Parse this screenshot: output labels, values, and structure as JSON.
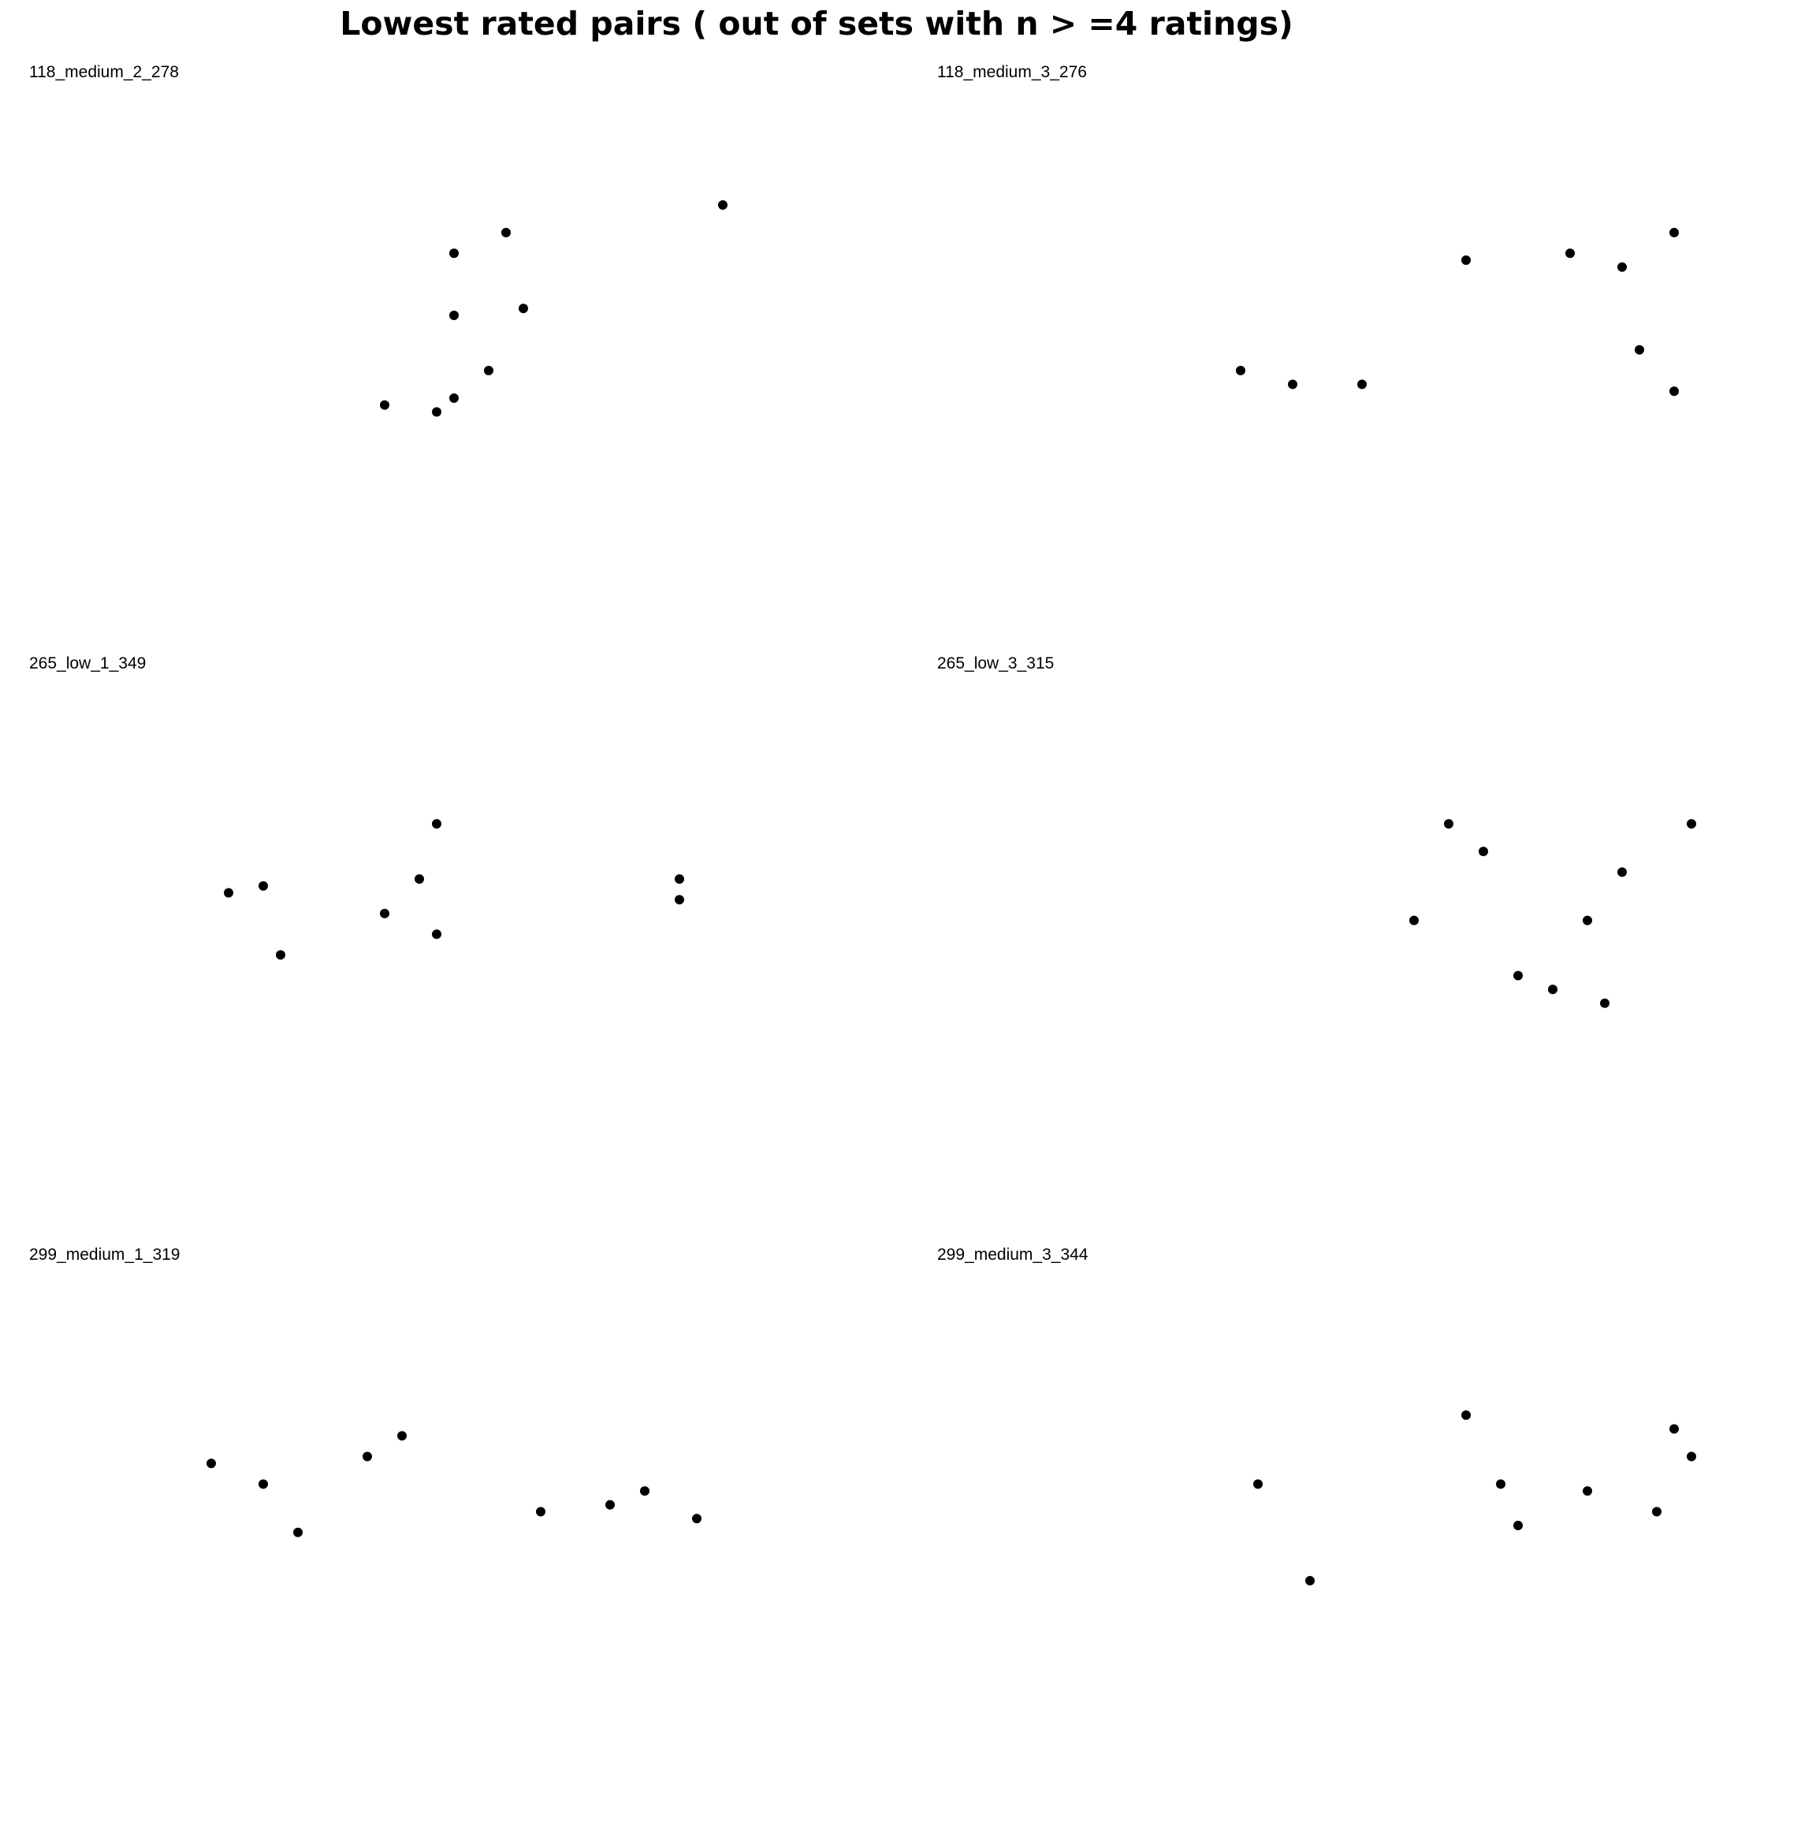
{
  "figure": {
    "title": "Lowest rated pairs ( out of sets with n > =4 ratings)",
    "marker_color": "#000000"
  },
  "chart_data": [
    {
      "type": "scatter",
      "title": "118_medium_2_278",
      "xlabel": "",
      "ylabel": "",
      "xlim": [
        0,
        20
      ],
      "ylim": [
        0,
        20
      ],
      "grid": false,
      "axes_visible": false,
      "points": [
        {
          "x": 16.0,
          "y": 16.0
        },
        {
          "x": 11.0,
          "y": 15.0
        },
        {
          "x": 9.8,
          "y": 14.25
        },
        {
          "x": 11.4,
          "y": 12.25
        },
        {
          "x": 9.8,
          "y": 12.0
        },
        {
          "x": 10.6,
          "y": 10.0
        },
        {
          "x": 9.8,
          "y": 9.0
        },
        {
          "x": 8.2,
          "y": 8.75
        },
        {
          "x": 9.4,
          "y": 8.5
        }
      ]
    },
    {
      "type": "scatter",
      "title": "118_medium_3_276",
      "xlabel": "",
      "ylabel": "",
      "xlim": [
        0,
        20
      ],
      "ylim": [
        0,
        20
      ],
      "grid": false,
      "axes_visible": false,
      "points": [
        {
          "x": 17.0,
          "y": 15.0
        },
        {
          "x": 14.6,
          "y": 14.25
        },
        {
          "x": 12.2,
          "y": 14.0
        },
        {
          "x": 15.8,
          "y": 13.75
        },
        {
          "x": 16.2,
          "y": 10.75
        },
        {
          "x": 7.0,
          "y": 10.0
        },
        {
          "x": 8.2,
          "y": 9.5
        },
        {
          "x": 9.8,
          "y": 9.5
        },
        {
          "x": 17.0,
          "y": 9.25
        }
      ]
    },
    {
      "type": "scatter",
      "title": "265_low_1_349",
      "xlabel": "",
      "ylabel": "",
      "xlim": [
        0,
        20
      ],
      "ylim": [
        0,
        20
      ],
      "grid": false,
      "axes_visible": false,
      "points": [
        {
          "x": 9.4,
          "y": 15.0
        },
        {
          "x": 9.0,
          "y": 13.0
        },
        {
          "x": 15.0,
          "y": 13.0
        },
        {
          "x": 5.4,
          "y": 12.75
        },
        {
          "x": 4.6,
          "y": 12.5
        },
        {
          "x": 15.0,
          "y": 12.25
        },
        {
          "x": 8.2,
          "y": 11.75
        },
        {
          "x": 9.4,
          "y": 11.0
        },
        {
          "x": 5.8,
          "y": 10.25
        }
      ]
    },
    {
      "type": "scatter",
      "title": "265_low_3_315",
      "xlabel": "",
      "ylabel": "",
      "xlim": [
        0,
        20
      ],
      "ylim": [
        0,
        20
      ],
      "grid": false,
      "axes_visible": false,
      "points": [
        {
          "x": 11.8,
          "y": 15.0
        },
        {
          "x": 17.4,
          "y": 15.0
        },
        {
          "x": 12.6,
          "y": 14.0
        },
        {
          "x": 15.8,
          "y": 13.25
        },
        {
          "x": 11.0,
          "y": 11.5
        },
        {
          "x": 15.0,
          "y": 11.5
        },
        {
          "x": 13.4,
          "y": 9.5
        },
        {
          "x": 14.2,
          "y": 9.0
        },
        {
          "x": 15.4,
          "y": 8.5
        }
      ]
    },
    {
      "type": "scatter",
      "title": "299_medium_1_319",
      "xlabel": "",
      "ylabel": "",
      "xlim": [
        0,
        20
      ],
      "ylim": [
        0,
        20
      ],
      "grid": false,
      "axes_visible": false,
      "points": [
        {
          "x": 8.6,
          "y": 14.25
        },
        {
          "x": 7.8,
          "y": 13.5
        },
        {
          "x": 4.2,
          "y": 13.25
        },
        {
          "x": 5.4,
          "y": 12.5
        },
        {
          "x": 14.2,
          "y": 12.25
        },
        {
          "x": 13.4,
          "y": 11.75
        },
        {
          "x": 11.8,
          "y": 11.5
        },
        {
          "x": 15.4,
          "y": 11.25
        },
        {
          "x": 6.2,
          "y": 10.75
        }
      ]
    },
    {
      "type": "scatter",
      "title": "299_medium_3_344",
      "xlabel": "",
      "ylabel": "",
      "xlim": [
        0,
        20
      ],
      "ylim": [
        0,
        20
      ],
      "grid": false,
      "axes_visible": false,
      "points": [
        {
          "x": 12.2,
          "y": 15.0
        },
        {
          "x": 17.0,
          "y": 14.5
        },
        {
          "x": 17.4,
          "y": 13.5
        },
        {
          "x": 7.4,
          "y": 12.5
        },
        {
          "x": 13.0,
          "y": 12.5
        },
        {
          "x": 15.0,
          "y": 12.25
        },
        {
          "x": 16.6,
          "y": 11.5
        },
        {
          "x": 13.4,
          "y": 11.0
        },
        {
          "x": 8.6,
          "y": 9.0
        }
      ]
    }
  ]
}
